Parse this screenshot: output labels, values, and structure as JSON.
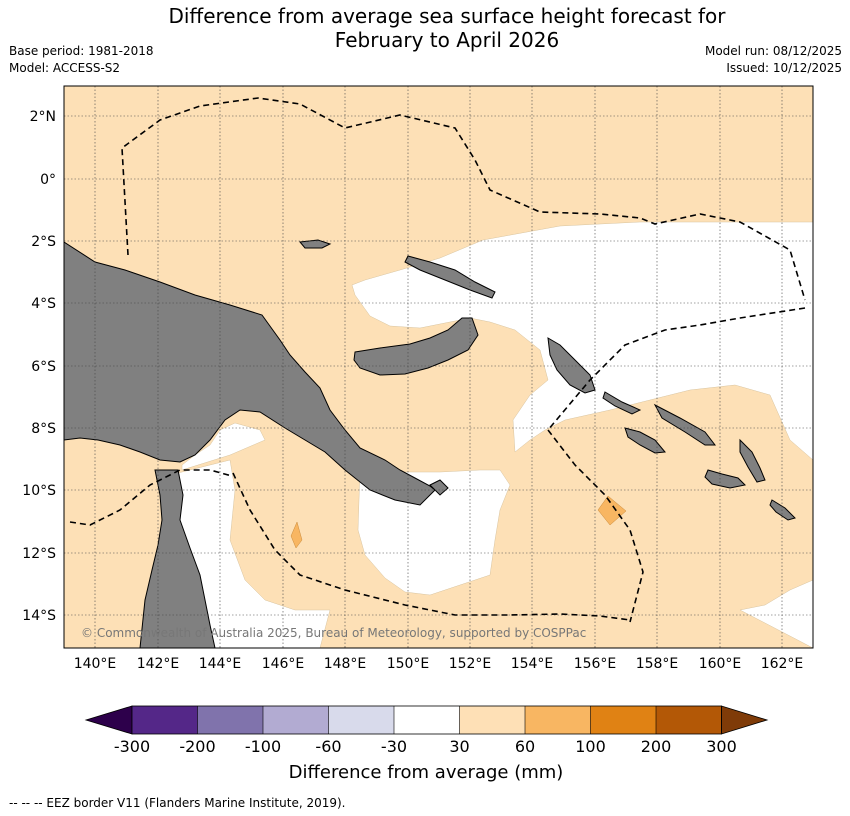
{
  "title": {
    "line1": "Difference from average sea surface height forecast for",
    "line2": "February to April 2026"
  },
  "meta": {
    "base_period": "Base period: 1981-2018",
    "model": "Model: ACCESS-S2",
    "model_run": "Model run: 08/12/2025",
    "issued": "Issued: 10/12/2025"
  },
  "map": {
    "lat_labels": [
      "2°N",
      "0°",
      "2°S",
      "4°S",
      "6°S",
      "8°S",
      "10°S",
      "12°S",
      "14°S"
    ],
    "lon_labels": [
      "140°E",
      "142°E",
      "144°E",
      "146°E",
      "148°E",
      "150°E",
      "152°E",
      "154°E",
      "156°E",
      "158°E",
      "160°E",
      "162°E"
    ],
    "copyright": "© Commonwealth of Australia 2025, Bureau of Meteorology, supported by COSPPac",
    "colors": {
      "land": "#808080",
      "ocean_30_60": "#fde0b6",
      "ocean_60_100": "#f8b662",
      "neutral": "#ffffff",
      "eez": "#000000"
    }
  },
  "colorbar": {
    "label": "Difference from average (mm)",
    "ticks": [
      "-300",
      "-200",
      "-100",
      "-60",
      "-30",
      "30",
      "60",
      "100",
      "200",
      "300"
    ],
    "colors": [
      "#2d004b",
      "#542788",
      "#8073ac",
      "#b2abd2",
      "#d8daeb",
      "#ffffff",
      "#fee0b6",
      "#f8b662",
      "#e08214",
      "#b35806",
      "#7f3b08"
    ]
  },
  "legend": {
    "eez": "-- -- -- EEZ border V11 (Flanders Marine Institute, 2019)."
  }
}
